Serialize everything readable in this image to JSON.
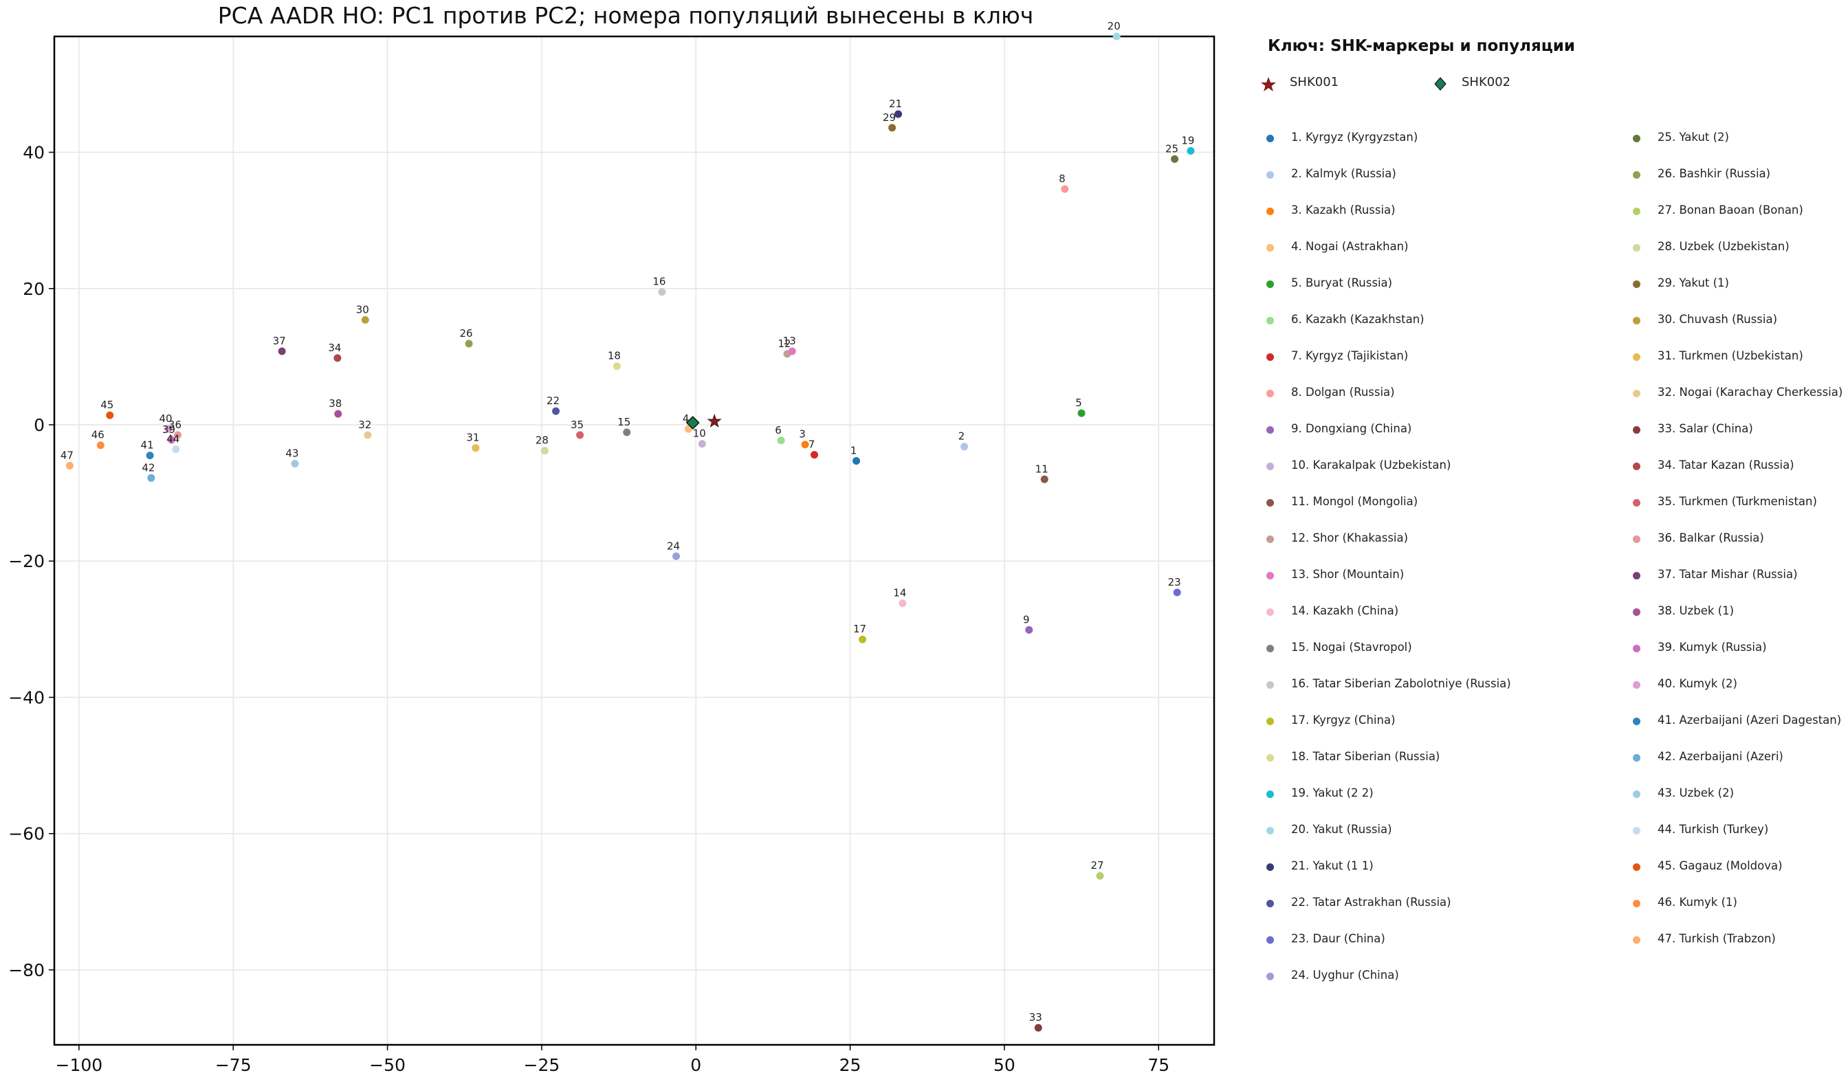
{
  "chart_data": {
    "type": "scatter",
    "title": "PCA AADR HO: PC1 против PC2; номера популяций вынесены в ключ",
    "xlabel": "",
    "ylabel": "",
    "xlim": [
      -104,
      84
    ],
    "ylim": [
      -91,
      57
    ],
    "xticks": [
      -100,
      -75,
      -50,
      -25,
      0,
      25,
      50,
      75
    ],
    "yticks": [
      -80,
      -60,
      -40,
      -20,
      0,
      20,
      40
    ],
    "xtick_labels": [
      "−100",
      "−75",
      "−50",
      "−25",
      "0",
      "25",
      "50",
      "75"
    ],
    "ytick_labels": [
      "−80",
      "−60",
      "−40",
      "−20",
      "0",
      "20",
      "40"
    ],
    "grid": true,
    "legend_title": "Ключ: SHK-маркеры и популяции",
    "markers": [
      {
        "name": "SHK001",
        "shape": "star",
        "color": "#8b1a1a",
        "x": 3.0,
        "y": 0.5
      },
      {
        "name": "SHK002",
        "shape": "diamond",
        "color": "#1a7a50",
        "x": -0.5,
        "y": 0.3
      }
    ],
    "populations": [
      {
        "num": 1,
        "label": "1. Kyrgyz (Kyrgyzstan)",
        "color": "#1f77b4",
        "x": 26,
        "y": -5.3
      },
      {
        "num": 2,
        "label": "2. Kalmyk (Russia)",
        "color": "#aec7e8",
        "x": 43.5,
        "y": -3.2
      },
      {
        "num": 3,
        "label": "3. Kazakh (Russia)",
        "color": "#ff7f0e",
        "x": 17.7,
        "y": -2.9
      },
      {
        "num": 4,
        "label": "4. Nogai (Astrakhan)",
        "color": "#ffbb78",
        "x": -1.2,
        "y": -0.6
      },
      {
        "num": 5,
        "label": "5. Buryat (Russia)",
        "color": "#2ca02c",
        "x": 62.5,
        "y": 1.7
      },
      {
        "num": 6,
        "label": "6. Kazakh (Kazakhstan)",
        "color": "#98df8a",
        "x": 13.8,
        "y": -2.3
      },
      {
        "num": 7,
        "label": "7. Kyrgyz (Tajikistan)",
        "color": "#d62728",
        "x": 19.2,
        "y": -4.4
      },
      {
        "num": 8,
        "label": "8. Dolgan (Russia)",
        "color": "#ff9896",
        "x": 59.8,
        "y": 34.6
      },
      {
        "num": 9,
        "label": "9. Dongxiang (China)",
        "color": "#9467bd",
        "x": 54.0,
        "y": -30.1
      },
      {
        "num": 10,
        "label": "10. Karakalpak (Uzbekistan)",
        "color": "#c5b0d5",
        "x": 1.0,
        "y": -2.8
      },
      {
        "num": 11,
        "label": "11. Mongol (Mongolia)",
        "color": "#8c564b",
        "x": 56.5,
        "y": -8.0
      },
      {
        "num": 12,
        "label": "12. Shor (Khakassia)",
        "color": "#c49c94",
        "x": 14.8,
        "y": 10.4
      },
      {
        "num": 13,
        "label": "13. Shor (Mountain)",
        "color": "#e377c2",
        "x": 15.6,
        "y": 10.8
      },
      {
        "num": 14,
        "label": "14. Kazakh (China)",
        "color": "#f7b6d2",
        "x": 33.5,
        "y": -26.2
      },
      {
        "num": 15,
        "label": "15. Nogai (Stavropol)",
        "color": "#7f7f7f",
        "x": -11.2,
        "y": -1.1
      },
      {
        "num": 16,
        "label": "16. Tatar Siberian Zabolotniye (Russia)",
        "color": "#c7c7c7",
        "x": -5.5,
        "y": 19.5
      },
      {
        "num": 17,
        "label": "17. Kyrgyz (China)",
        "color": "#bcbd22",
        "x": 27.0,
        "y": -31.5
      },
      {
        "num": 18,
        "label": "18. Tatar Siberian (Russia)",
        "color": "#dbdb8d",
        "x": -12.8,
        "y": 8.6
      },
      {
        "num": 19,
        "label": "19. Yakut (2 2)",
        "color": "#17becf",
        "x": 80.2,
        "y": 40.2
      },
      {
        "num": 20,
        "label": "20. Yakut (Russia)",
        "color": "#9edae5",
        "x": 68.2,
        "y": 57.0
      },
      {
        "num": 21,
        "label": "21. Yakut (1 1)",
        "color": "#393b79",
        "x": 32.8,
        "y": 45.6
      },
      {
        "num": 22,
        "label": "22. Tatar Astrakhan (Russia)",
        "color": "#5254a3",
        "x": -22.7,
        "y": 2.0
      },
      {
        "num": 23,
        "label": "23. Daur (China)",
        "color": "#6b6ecf",
        "x": 78.0,
        "y": -24.6
      },
      {
        "num": 24,
        "label": "24. Uyghur (China)",
        "color": "#9c9ede",
        "x": -3.2,
        "y": -19.3
      },
      {
        "num": 25,
        "label": "25. Yakut (2)",
        "color": "#637939",
        "x": 77.6,
        "y": 39.0
      },
      {
        "num": 26,
        "label": "26. Bashkir (Russia)",
        "color": "#8ca252",
        "x": -36.8,
        "y": 11.9
      },
      {
        "num": 27,
        "label": "27. Bonan Baoan (Bonan)",
        "color": "#b5cf6b",
        "x": 65.5,
        "y": -66.2
      },
      {
        "num": 28,
        "label": "28. Uzbek (Uzbekistan)",
        "color": "#cedb9c",
        "x": -24.5,
        "y": -3.8
      },
      {
        "num": 29,
        "label": "29. Yakut (1)",
        "color": "#8c6d31",
        "x": 31.8,
        "y": 43.6
      },
      {
        "num": 30,
        "label": "30. Chuvash (Russia)",
        "color": "#bd9e39",
        "x": -53.6,
        "y": 15.4
      },
      {
        "num": 31,
        "label": "31. Turkmen (Uzbekistan)",
        "color": "#e7ba52",
        "x": -35.7,
        "y": -3.4
      },
      {
        "num": 32,
        "label": "32. Nogai (Karachay Cherkessia)",
        "color": "#e7cb94",
        "x": -53.2,
        "y": -1.5
      },
      {
        "num": 33,
        "label": "33. Salar (China)",
        "color": "#843c39",
        "x": 55.5,
        "y": -88.5
      },
      {
        "num": 34,
        "label": "34. Tatar Kazan (Russia)",
        "color": "#ad494a",
        "x": -58.1,
        "y": 9.8
      },
      {
        "num": 35,
        "label": "35. Turkmen (Turkmenistan)",
        "color": "#d6616b",
        "x": -18.8,
        "y": -1.5
      },
      {
        "num": 36,
        "label": "36. Balkar (Russia)",
        "color": "#e7969c",
        "x": -84.0,
        "y": -1.5
      },
      {
        "num": 37,
        "label": "37. Tatar Mishar (Russia)",
        "color": "#7b4173",
        "x": -67.1,
        "y": 10.8
      },
      {
        "num": 38,
        "label": "38. Uzbek (1)",
        "color": "#a55194",
        "x": -58.0,
        "y": 1.6
      },
      {
        "num": 39,
        "label": "39. Kumyk (Russia)",
        "color": "#ce6dbd",
        "x": -85.0,
        "y": -2.2
      },
      {
        "num": 40,
        "label": "40. Kumyk (2)",
        "color": "#de9ed6",
        "x": -85.5,
        "y": -0.6
      },
      {
        "num": 41,
        "label": "41. Azerbaijani (Azeri Dagestan)",
        "color": "#3182bd",
        "x": -88.5,
        "y": -4.5
      },
      {
        "num": 42,
        "label": "42. Azerbaijani (Azeri)",
        "color": "#6baed6",
        "x": -88.3,
        "y": -7.8
      },
      {
        "num": 43,
        "label": "43. Uzbek (2)",
        "color": "#9ecae1",
        "x": -65.0,
        "y": -5.7
      },
      {
        "num": 44,
        "label": "44. Turkish (Turkey)",
        "color": "#c6dbef",
        "x": -84.3,
        "y": -3.6
      },
      {
        "num": 45,
        "label": "45. Gagauz (Moldova)",
        "color": "#e6550d",
        "x": -95.0,
        "y": 1.4
      },
      {
        "num": 46,
        "label": "46. Kumyk (1)",
        "color": "#fd8d3c",
        "x": -96.5,
        "y": -3.0
      },
      {
        "num": 47,
        "label": "47. Turkish (Trabzon)",
        "color": "#fdae6b",
        "x": -101.5,
        "y": -6.0
      }
    ]
  }
}
